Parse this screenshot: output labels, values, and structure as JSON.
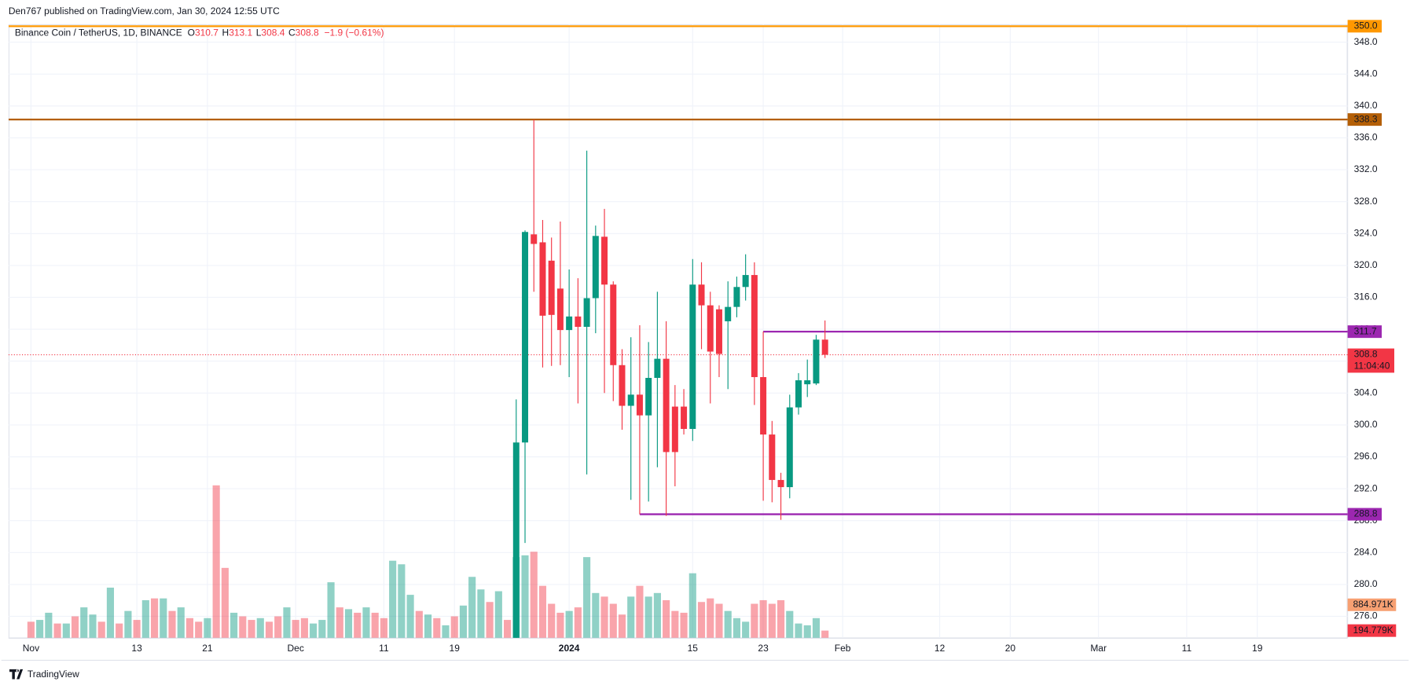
{
  "header": "Den767 published on TradingView.com, Jan 30, 2024 12:55 UTC",
  "branding": "TradingView",
  "chart_data": {
    "type": "candlestick",
    "title": "Binance Coin / TetherUS, 1D, BINANCE",
    "legend": {
      "o_label": "O",
      "open": 310.7,
      "h_label": "H",
      "high": 313.1,
      "l_label": "L",
      "low": 308.4,
      "c_label": "C",
      "close": 308.8,
      "change_label": "−1.9 (−0.61%)"
    },
    "up_color": "#089981",
    "down_color": "#f23645",
    "x": [
      "Nov 1",
      "Nov 2",
      "Nov 3",
      "Nov 4",
      "Nov 5",
      "Nov 6",
      "Nov 7",
      "Nov 8",
      "Nov 9",
      "Nov 10",
      "Nov 11",
      "Nov 12",
      "Nov 13",
      "Nov 14",
      "Nov 15",
      "Nov 16",
      "Nov 17",
      "Nov 18",
      "Nov 19",
      "Nov 20",
      "Nov 21",
      "Nov 22",
      "Nov 23",
      "Nov 24",
      "Nov 25",
      "Nov 26",
      "Nov 27",
      "Nov 28",
      "Nov 29",
      "Nov 30",
      "Dec 1",
      "Dec 2",
      "Dec 3",
      "Dec 4",
      "Dec 5",
      "Dec 6",
      "Dec 7",
      "Dec 8",
      "Dec 9",
      "Dec 10",
      "Dec 11",
      "Dec 12",
      "Dec 13",
      "Dec 14",
      "Dec 15",
      "Dec 16",
      "Dec 17",
      "Dec 18",
      "Dec 19",
      "Dec 20",
      "Dec 21",
      "Dec 22",
      "Dec 23",
      "Dec 24",
      "Dec 25",
      "Dec 26",
      "Dec 27",
      "Dec 28",
      "Dec 29",
      "Dec 30",
      "Dec 31",
      "Jan 1",
      "Jan 2",
      "Jan 3",
      "Jan 4",
      "Jan 5",
      "Jan 6",
      "Jan 7",
      "Jan 8",
      "Jan 9",
      "Jan 10",
      "Jan 11",
      "Jan 12",
      "Jan 13",
      "Jan 14",
      "Jan 15",
      "Jan 16",
      "Jan 17",
      "Jan 18",
      "Jan 19",
      "Jan 20",
      "Jan 21",
      "Jan 22",
      "Jan 23",
      "Jan 24",
      "Jan 25",
      "Jan 26",
      "Jan 27",
      "Jan 28",
      "Jan 29",
      "Jan 30"
    ],
    "open": [
      null,
      null,
      null,
      null,
      null,
      null,
      null,
      null,
      null,
      null,
      null,
      null,
      null,
      null,
      null,
      null,
      null,
      null,
      null,
      null,
      null,
      null,
      null,
      null,
      null,
      null,
      null,
      null,
      null,
      null,
      null,
      null,
      null,
      null,
      null,
      null,
      null,
      null,
      null,
      null,
      null,
      null,
      null,
      null,
      null,
      null,
      null,
      null,
      null,
      null,
      null,
      null,
      null,
      null,
      null,
      270,
      297.8,
      323.9,
      322.9,
      320.6,
      317.1,
      311.9,
      313.6,
      312.3,
      315.9,
      323.6,
      317.6,
      307.5,
      302.4,
      303.8,
      301.2,
      305.9,
      308.3,
      302.3,
      302.3,
      299.5,
      317.6,
      315.0,
      314.5,
      313,
      314.8,
      317.3,
      318.8,
      306.0,
      298.8,
      293.1,
      292.2,
      302.2,
      305.1,
      305.2,
      310.7
    ],
    "high": [
      null,
      null,
      null,
      null,
      null,
      null,
      null,
      null,
      null,
      null,
      null,
      null,
      null,
      null,
      null,
      null,
      null,
      null,
      null,
      null,
      null,
      null,
      null,
      null,
      null,
      null,
      null,
      null,
      null,
      null,
      null,
      null,
      null,
      null,
      null,
      null,
      null,
      null,
      null,
      null,
      null,
      null,
      null,
      null,
      null,
      null,
      null,
      null,
      null,
      null,
      null,
      null,
      null,
      null,
      null,
      303.2,
      324.4,
      338.3,
      325.7,
      323.5,
      325.5,
      319.5,
      318.4,
      334.4,
      325,
      327.1,
      318,
      309.5,
      311,
      312.5,
      310.4,
      316.7,
      313,
      305,
      304.5,
      320.8,
      320.4,
      316.7,
      315,
      318,
      318.6,
      321.4,
      320.4,
      311.7,
      300.5,
      294,
      303.8,
      306.5,
      308.2,
      311.3,
      313.1
    ],
    "low": [
      null,
      null,
      null,
      null,
      null,
      null,
      null,
      null,
      null,
      null,
      null,
      null,
      null,
      null,
      null,
      null,
      null,
      null,
      null,
      null,
      null,
      null,
      null,
      null,
      null,
      null,
      null,
      null,
      null,
      null,
      null,
      null,
      null,
      null,
      null,
      null,
      null,
      null,
      null,
      null,
      null,
      null,
      null,
      null,
      null,
      null,
      null,
      null,
      null,
      null,
      null,
      null,
      null,
      null,
      null,
      268,
      285.2,
      316.7,
      307.2,
      307.4,
      307.5,
      306,
      302.7,
      293.8,
      311.5,
      304,
      303,
      299.4,
      290.6,
      288.8,
      290.4,
      294.7,
      288.6,
      292.3,
      298.8,
      298,
      309.5,
      302.7,
      306,
      304.5,
      313.5,
      315.6,
      302.5,
      290.5,
      290.3,
      288.1,
      290.8,
      301.3,
      303.5,
      305,
      308.4
    ],
    "close": [
      null,
      null,
      null,
      null,
      null,
      null,
      null,
      null,
      null,
      null,
      null,
      null,
      null,
      null,
      null,
      null,
      null,
      null,
      null,
      null,
      null,
      null,
      null,
      null,
      null,
      null,
      null,
      null,
      null,
      null,
      null,
      null,
      null,
      null,
      null,
      null,
      null,
      null,
      null,
      null,
      null,
      null,
      null,
      null,
      null,
      null,
      null,
      null,
      null,
      null,
      null,
      null,
      null,
      null,
      null,
      297.8,
      324.2,
      322.7,
      313.7,
      313.8,
      311.9,
      313.6,
      312.3,
      315.9,
      323.7,
      317.6,
      307.5,
      302.4,
      303.8,
      301.2,
      305.9,
      308.3,
      296.6,
      296.6,
      299.5,
      317.6,
      315.0,
      309.2,
      308.9,
      314.8,
      317.3,
      318.8,
      306.0,
      298.8,
      293.1,
      292.2,
      302.2,
      305.6,
      305.6,
      310.7,
      308.8
    ],
    "volume": [
      432,
      480,
      672,
      384,
      384,
      576,
      816,
      624,
      432,
      1344,
      384,
      720,
      480,
      1008,
      1056,
      1056,
      720,
      816,
      528,
      432,
      528,
      4080,
      1872,
      672,
      576,
      480,
      528,
      432,
      576,
      816,
      480,
      528,
      384,
      480,
      1488,
      816,
      768,
      672,
      816,
      672,
      528,
      2064,
      1968,
      1152,
      720,
      624,
      528,
      336,
      576,
      864,
      1632,
      1296,
      960,
      1248,
      480,
      2160,
      2208,
      2304,
      1392,
      912,
      672,
      720,
      816,
      2160,
      1200,
      1104,
      912,
      624,
      1104,
      1392,
      1104,
      1200,
      1008,
      720,
      672,
      1728,
      960,
      1056,
      912,
      720,
      528,
      432,
      912,
      1008,
      912,
      1008,
      720,
      384,
      336,
      528,
      194.779
    ],
    "volume_up": [
      false,
      true,
      true,
      false,
      true,
      false,
      true,
      true,
      false,
      true,
      false,
      true,
      false,
      true,
      false,
      true,
      false,
      true,
      false,
      false,
      true,
      false,
      false,
      true,
      false,
      false,
      true,
      false,
      false,
      true,
      false,
      false,
      true,
      true,
      true,
      false,
      true,
      false,
      true,
      false,
      false,
      true,
      true,
      true,
      false,
      true,
      false,
      true,
      false,
      true,
      true,
      true,
      false,
      true,
      false,
      true,
      true,
      false,
      false,
      false,
      false,
      true,
      false,
      true,
      true,
      false,
      false,
      false,
      true,
      false,
      true,
      true,
      false,
      false,
      false,
      true,
      false,
      false,
      false,
      true,
      true,
      true,
      false,
      false,
      false,
      false,
      true,
      true,
      true,
      true,
      false
    ],
    "volume_labels": [
      {
        "value": 884.971,
        "label": "884.971K",
        "color": "#f7a072"
      },
      {
        "value": 194.779,
        "label": "194.779K",
        "color": "#f23645"
      }
    ],
    "ylim": [
      273.3,
      350.25
    ],
    "yticks": [
      {
        "value": 276,
        "label": "276.0"
      },
      {
        "value": 280,
        "label": "280.0"
      },
      {
        "value": 284,
        "label": "284.0"
      },
      {
        "value": 288,
        "label": "288.0"
      },
      {
        "value": 292,
        "label": "292.0"
      },
      {
        "value": 296,
        "label": "296.0"
      },
      {
        "value": 300,
        "label": "300.0"
      },
      {
        "value": 304,
        "label": "304.0"
      },
      {
        "value": 308,
        "label": "308.0"
      },
      {
        "value": 312,
        "label": "312.0"
      },
      {
        "value": 316,
        "label": "316.0"
      },
      {
        "value": 320,
        "label": "320.0"
      },
      {
        "value": 324,
        "label": "324.0"
      },
      {
        "value": 328,
        "label": "328.0"
      },
      {
        "value": 332,
        "label": "332.0"
      },
      {
        "value": 336,
        "label": "336.0"
      },
      {
        "value": 340,
        "label": "340.0"
      },
      {
        "value": 344,
        "label": "344.0"
      },
      {
        "value": 348,
        "label": "348.0"
      }
    ],
    "xticks": [
      {
        "value": "Nov 1",
        "label": "Nov"
      },
      {
        "value": "Nov 13",
        "label": "13"
      },
      {
        "value": "Nov 21",
        "label": "21"
      },
      {
        "value": "Dec 1",
        "label": "Dec"
      },
      {
        "value": "Dec 11",
        "label": "11"
      },
      {
        "value": "Dec 19",
        "label": "19"
      },
      {
        "value": "Jan 1",
        "label": "2024"
      },
      {
        "value": "Jan 15",
        "label": "15"
      },
      {
        "value": "Jan 23",
        "label": "23"
      },
      {
        "value": "Feb 1",
        "label": "Feb"
      },
      {
        "value": "Feb 12",
        "label": "12"
      },
      {
        "value": "Feb 20",
        "label": "20"
      },
      {
        "value": "Mar 1",
        "label": "Mar"
      },
      {
        "value": "Mar 11",
        "label": "11"
      },
      {
        "value": "Mar 19",
        "label": "19"
      }
    ],
    "hlines": [
      {
        "value": 350.0,
        "label": "350.0",
        "color": "#ff9800"
      },
      {
        "value": 338.3,
        "label": "338.3",
        "color": "#b45f06"
      },
      {
        "value": 311.7,
        "label": "311.7",
        "color": "#9c27b0",
        "start": "Jan 23"
      },
      {
        "value": 288.8,
        "label": "288.8",
        "color": "#9c27b0",
        "start": "Jan 9"
      }
    ],
    "last_price": {
      "value": 308.8,
      "label": "308.8",
      "countdown": "11:04:40",
      "color": "#f23645"
    },
    "grid": true
  }
}
